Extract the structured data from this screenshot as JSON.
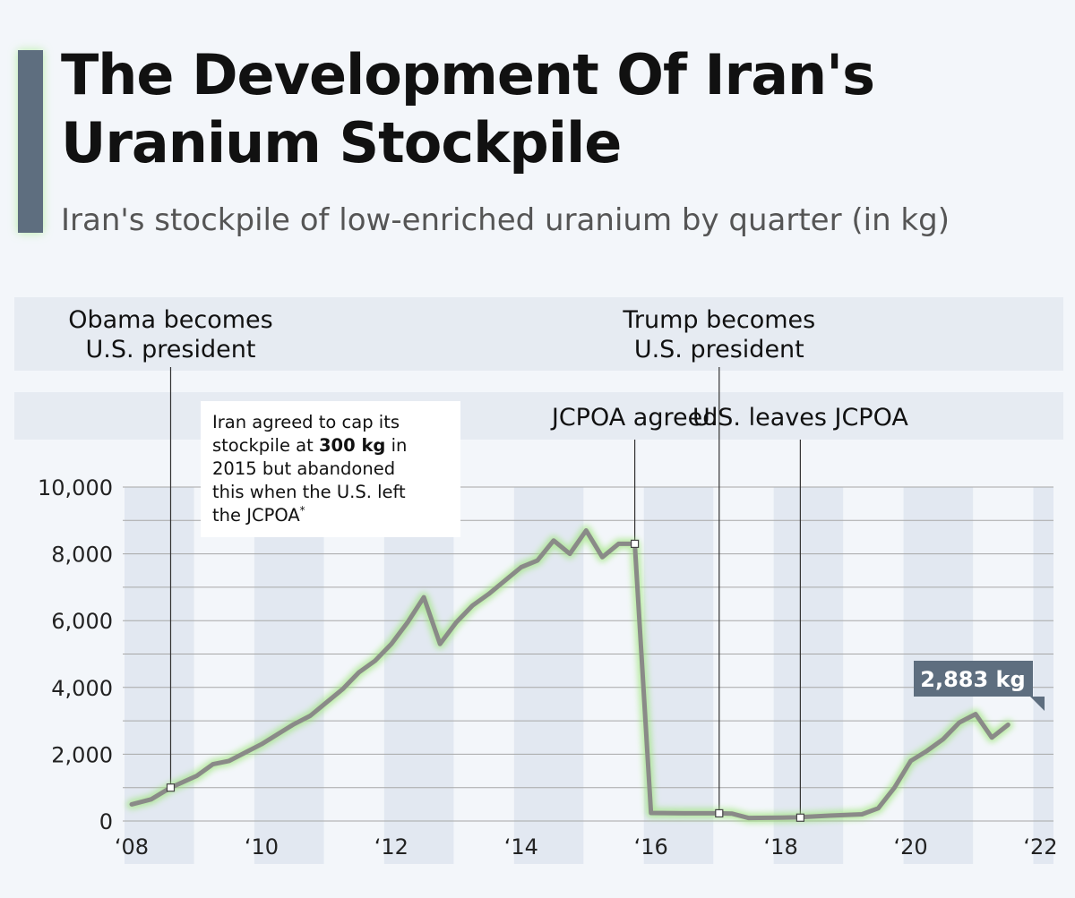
{
  "title_lines": [
    "The Development Of Iran's",
    "Uranium Stockpile"
  ],
  "subtitle": "Iran's stockpile of low-enriched uranium by quarter (in kg)",
  "annotation": {
    "lines": [
      [
        {
          "t": "Iran agreed to cap its"
        }
      ],
      [
        {
          "t": "stockpile at "
        },
        {
          "t": "300 kg",
          "b": true
        },
        {
          "t": " in"
        }
      ],
      [
        {
          "t": "2015 but abandoned"
        }
      ],
      [
        {
          "t": "this when the U.S. left"
        }
      ],
      [
        {
          "t": "the JCPOA"
        },
        {
          "t": "*",
          "sup": true
        }
      ]
    ]
  },
  "colors": {
    "line": "#8a8a88",
    "glow": "#9ee67a",
    "title_bar": "#5e6e7f",
    "label_box": "#5e6e7f",
    "shaded_band": "#e2e8f1",
    "header_band": "#e6ebf2",
    "background": "#f3f6fa"
  },
  "chart_data": {
    "type": "line",
    "ylim": [
      0,
      10000
    ],
    "xlim": [
      2008,
      2022.2
    ],
    "y_ticks": [
      0,
      2000,
      4000,
      6000,
      8000,
      10000
    ],
    "y_tick_labels": [
      "0",
      "2,000",
      "4,000",
      "6,000",
      "8,000",
      "10,000"
    ],
    "x_ticks": [
      2008,
      2010,
      2012,
      2014,
      2016,
      2018,
      2020,
      2022
    ],
    "x_tick_labels": [
      "‘08",
      "‘10",
      "‘12",
      "‘14",
      "‘16",
      "‘18",
      "‘20",
      "‘22"
    ],
    "shaded_years": [
      2008,
      2010,
      2012,
      2014,
      2016,
      2018,
      2020,
      2022
    ],
    "series": [
      {
        "values": [
          [
            2008.0,
            500
          ],
          [
            2008.3,
            650
          ],
          [
            2008.6,
            1000
          ],
          [
            2009.0,
            1350
          ],
          [
            2009.25,
            1700
          ],
          [
            2009.5,
            1800
          ],
          [
            2009.75,
            2050
          ],
          [
            2010.0,
            2300
          ],
          [
            2010.25,
            2600
          ],
          [
            2010.5,
            2900
          ],
          [
            2010.75,
            3150
          ],
          [
            2011.0,
            3550
          ],
          [
            2011.25,
            3950
          ],
          [
            2011.5,
            4450
          ],
          [
            2011.75,
            4800
          ],
          [
            2012.0,
            5300
          ],
          [
            2012.25,
            5950
          ],
          [
            2012.5,
            6700
          ],
          [
            2012.75,
            5300
          ],
          [
            2013.0,
            5950
          ],
          [
            2013.25,
            6450
          ],
          [
            2013.5,
            6800
          ],
          [
            2013.75,
            7200
          ],
          [
            2014.0,
            7600
          ],
          [
            2014.25,
            7800
          ],
          [
            2014.5,
            8400
          ],
          [
            2014.75,
            8000
          ],
          [
            2015.0,
            8700
          ],
          [
            2015.25,
            7900
          ],
          [
            2015.5,
            8300
          ],
          [
            2015.75,
            8300
          ],
          [
            2016.0,
            240
          ],
          [
            2016.5,
            230
          ],
          [
            2017.0,
            230
          ],
          [
            2017.25,
            220
          ],
          [
            2017.5,
            90
          ],
          [
            2018.0,
            100
          ],
          [
            2018.25,
            110
          ],
          [
            2018.75,
            160
          ],
          [
            2019.0,
            180
          ],
          [
            2019.25,
            200
          ],
          [
            2019.5,
            380
          ],
          [
            2019.75,
            1000
          ],
          [
            2020.0,
            1800
          ],
          [
            2020.25,
            2100
          ],
          [
            2020.5,
            2450
          ],
          [
            2020.75,
            2950
          ],
          [
            2021.0,
            3200
          ],
          [
            2021.25,
            2500
          ],
          [
            2021.5,
            2883
          ]
        ]
      }
    ],
    "events": [
      {
        "x": 2008.6,
        "y": 1000,
        "label_lines": [
          "Obama becomes",
          "U.S. president"
        ],
        "row": 1
      },
      {
        "x": 2015.75,
        "y": 8300,
        "label_lines": [
          "JCPOA agreed"
        ],
        "row": 2
      },
      {
        "x": 2017.05,
        "y": 230,
        "label_lines": [
          "Trump becomes",
          "U.S. president"
        ],
        "row": 1
      },
      {
        "x": 2018.3,
        "y": 100,
        "label_lines": [
          "U.S. leaves JCPOA"
        ],
        "row": 2
      }
    ],
    "last_value_label": "2,883 kg"
  }
}
